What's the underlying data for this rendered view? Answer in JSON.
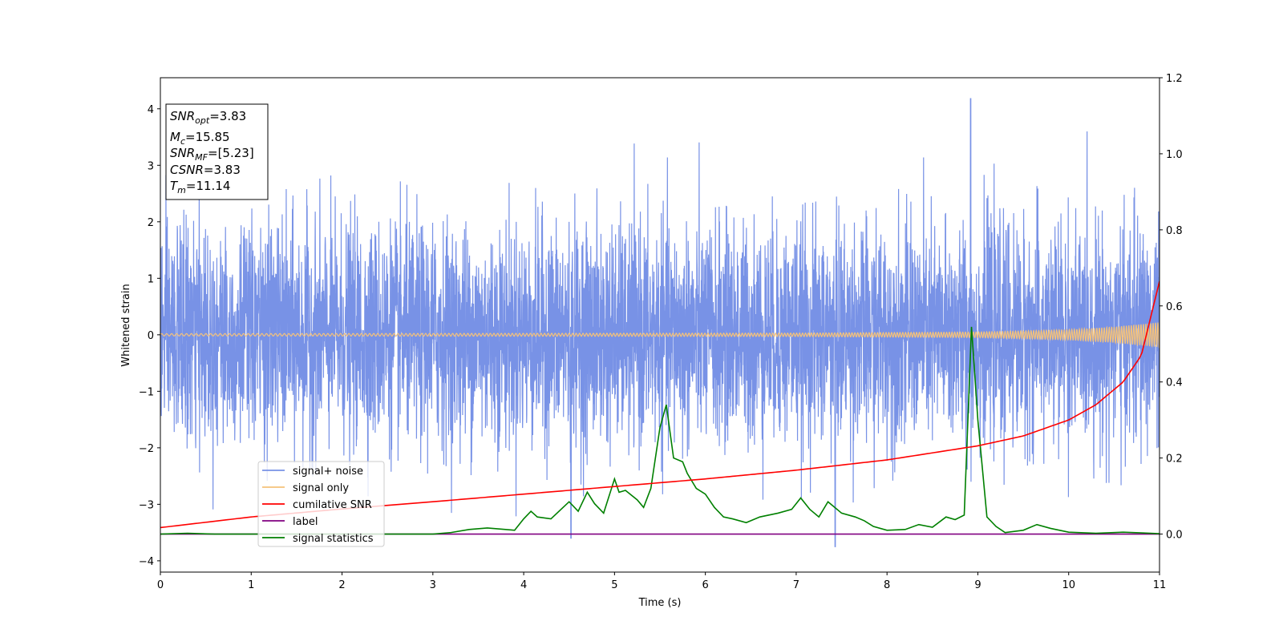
{
  "chart_data": {
    "type": "line",
    "xlabel": "Time (s)",
    "ylabel": "Whitened strain",
    "xlim": [
      0,
      11
    ],
    "ylim_left": [
      -4.2,
      4.55
    ],
    "ylim_right": [
      -0.1,
      1.2
    ],
    "x_ticks": [
      "0",
      "1",
      "2",
      "3",
      "4",
      "5",
      "6",
      "7",
      "8",
      "9",
      "10",
      "11"
    ],
    "y_ticks_left": [
      "−4",
      "−3",
      "−2",
      "−1",
      "0",
      "1",
      "2",
      "3",
      "4"
    ],
    "y_ticks_left_values": [
      -4,
      -3,
      -2,
      -1,
      0,
      1,
      2,
      3,
      4
    ],
    "y_ticks_right": [
      "0.0",
      "0.2",
      "0.4",
      "0.6",
      "0.8",
      "1.0",
      "1.2"
    ],
    "y_ticks_right_values": [
      0.0,
      0.2,
      0.4,
      0.6,
      0.8,
      1.0,
      1.2
    ],
    "info_box": [
      {
        "main": "SNR",
        "sub": "opt",
        "value": "=3.83"
      },
      {
        "main": "M",
        "sub": "c",
        "value": "=15.85"
      },
      {
        "main": "SNR",
        "sub": "MF",
        "value": "=[5.23]"
      },
      {
        "main": "CSNR",
        "sub": "",
        "value": "=3.83"
      },
      {
        "main": "T",
        "sub": "m",
        "value": "=11.14"
      }
    ],
    "series": [
      {
        "name": "signal+ noise",
        "axis": "left",
        "color": "#7892e6",
        "description": "whitened noisy strain, roughly Gaussian around 0 with std ~1, peaks to 4.18 near t=8.92"
      },
      {
        "name": "signal only",
        "axis": "left",
        "color": "#f5c27a",
        "amplitude_envelope": {
          "x": [
            0,
            7,
            9,
            10,
            10.5,
            11
          ],
          "y": [
            0.02,
            0.03,
            0.05,
            0.09,
            0.14,
            0.22
          ]
        }
      },
      {
        "name": "cumilative SNR",
        "axis": "right",
        "color": "#ff0000",
        "x": [
          0,
          1,
          2,
          3,
          4,
          5,
          6,
          7,
          8,
          9,
          9.5,
          10,
          10.3,
          10.6,
          10.8,
          11
        ],
        "y": [
          0.017,
          0.045,
          0.066,
          0.085,
          0.105,
          0.125,
          0.145,
          0.168,
          0.195,
          0.232,
          0.258,
          0.3,
          0.34,
          0.4,
          0.47,
          0.665
        ]
      },
      {
        "name": "label",
        "axis": "right",
        "color": "#800080",
        "x": [
          0,
          11
        ],
        "y": [
          0.0,
          0.0
        ]
      },
      {
        "name": "signal statistics",
        "axis": "right",
        "color": "#008000",
        "x": [
          0,
          0.3,
          0.6,
          1.0,
          1.5,
          2.0,
          2.5,
          3.0,
          3.2,
          3.4,
          3.6,
          3.8,
          3.9,
          4.0,
          4.08,
          4.15,
          4.3,
          4.5,
          4.6,
          4.7,
          4.78,
          4.88,
          5.0,
          5.05,
          5.12,
          5.25,
          5.32,
          5.4,
          5.5,
          5.57,
          5.65,
          5.75,
          5.8,
          5.9,
          6.0,
          6.1,
          6.2,
          6.3,
          6.45,
          6.6,
          6.8,
          6.95,
          7.05,
          7.15,
          7.25,
          7.35,
          7.5,
          7.65,
          7.75,
          7.85,
          8.0,
          8.2,
          8.35,
          8.5,
          8.65,
          8.75,
          8.85,
          8.93,
          9.0,
          9.1,
          9.2,
          9.3,
          9.5,
          9.65,
          9.8,
          10.0,
          10.3,
          10.6,
          10.8,
          11.0
        ],
        "y": [
          0.0,
          0.002,
          0.0,
          0.0,
          0.0,
          0.0,
          0.0,
          0.0,
          0.004,
          0.012,
          0.016,
          0.012,
          0.01,
          0.04,
          0.06,
          0.045,
          0.04,
          0.085,
          0.06,
          0.11,
          0.08,
          0.055,
          0.145,
          0.11,
          0.115,
          0.09,
          0.07,
          0.12,
          0.28,
          0.34,
          0.2,
          0.19,
          0.16,
          0.12,
          0.105,
          0.07,
          0.045,
          0.04,
          0.03,
          0.045,
          0.055,
          0.065,
          0.095,
          0.065,
          0.045,
          0.085,
          0.055,
          0.045,
          0.035,
          0.02,
          0.01,
          0.012,
          0.025,
          0.018,
          0.045,
          0.038,
          0.05,
          0.545,
          0.3,
          0.045,
          0.02,
          0.004,
          0.01,
          0.025,
          0.015,
          0.005,
          0.002,
          0.005,
          0.003,
          0.001
        ]
      }
    ],
    "legend": {
      "placement": "lower-left",
      "entries": [
        "signal+ noise",
        "signal only",
        "cumilative SNR",
        "label",
        "signal statistics"
      ]
    }
  }
}
